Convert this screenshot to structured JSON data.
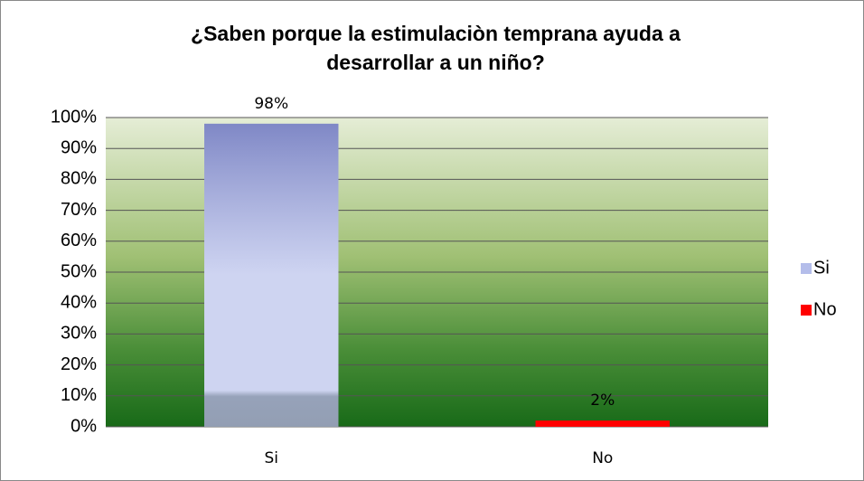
{
  "chart_data": {
    "type": "bar",
    "title": [
      "¿Saben porque la estimulaciòn temprana ayuda a",
      "desarrollar a un niño?"
    ],
    "categories": [
      "Si",
      "No"
    ],
    "values": [
      98,
      2
    ],
    "value_labels": [
      "98%",
      "2%"
    ],
    "colors": [
      "#b4bdea",
      "#ff0000"
    ],
    "ylim": [
      0,
      100
    ],
    "yticks": [
      {
        "value": 0,
        "label": "0%"
      },
      {
        "value": 10,
        "label": "10%"
      },
      {
        "value": 20,
        "label": "20%"
      },
      {
        "value": 30,
        "label": "30%"
      },
      {
        "value": 40,
        "label": "40%"
      },
      {
        "value": 50,
        "label": "50%"
      },
      {
        "value": 60,
        "label": "60%"
      },
      {
        "value": 70,
        "label": "70%"
      },
      {
        "value": 80,
        "label": "80%"
      },
      {
        "value": 90,
        "label": "90%"
      },
      {
        "value": 100,
        "label": "100%"
      }
    ],
    "grid": true,
    "legend": "right"
  }
}
